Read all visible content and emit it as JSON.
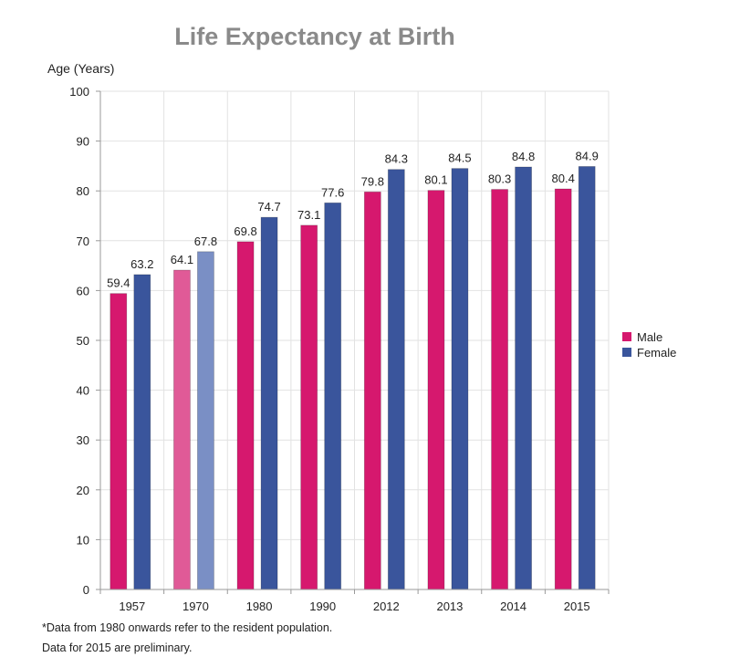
{
  "chart_data": {
    "type": "bar",
    "title": "Life Expectancy at Birth",
    "ylabel": "Age (Years)",
    "xlabel": "",
    "categories": [
      "1957",
      "1970",
      "1980",
      "1990",
      "2012",
      "2013",
      "2014",
      "2015"
    ],
    "series": [
      {
        "name": "Male",
        "color": "#d6186e",
        "values": [
          59.4,
          64.1,
          69.8,
          73.1,
          79.8,
          80.1,
          80.3,
          80.4
        ]
      },
      {
        "name": "Female",
        "color": "#3a559c",
        "values": [
          63.2,
          67.8,
          74.7,
          77.6,
          84.3,
          84.5,
          84.8,
          84.9
        ]
      }
    ],
    "highlight_category_index": 1,
    "highlight_colors": [
      "#e05a97",
      "#7a8fc5"
    ],
    "ylim": [
      0,
      100
    ],
    "yticks": [
      0,
      10,
      20,
      30,
      40,
      50,
      60,
      70,
      80,
      90,
      100
    ],
    "grid": true,
    "legend_position": "right"
  },
  "footnotes": {
    "line1": "*Data from 1980 onwards refer to the resident population.",
    "line2": "Data for 2015 are preliminary."
  }
}
